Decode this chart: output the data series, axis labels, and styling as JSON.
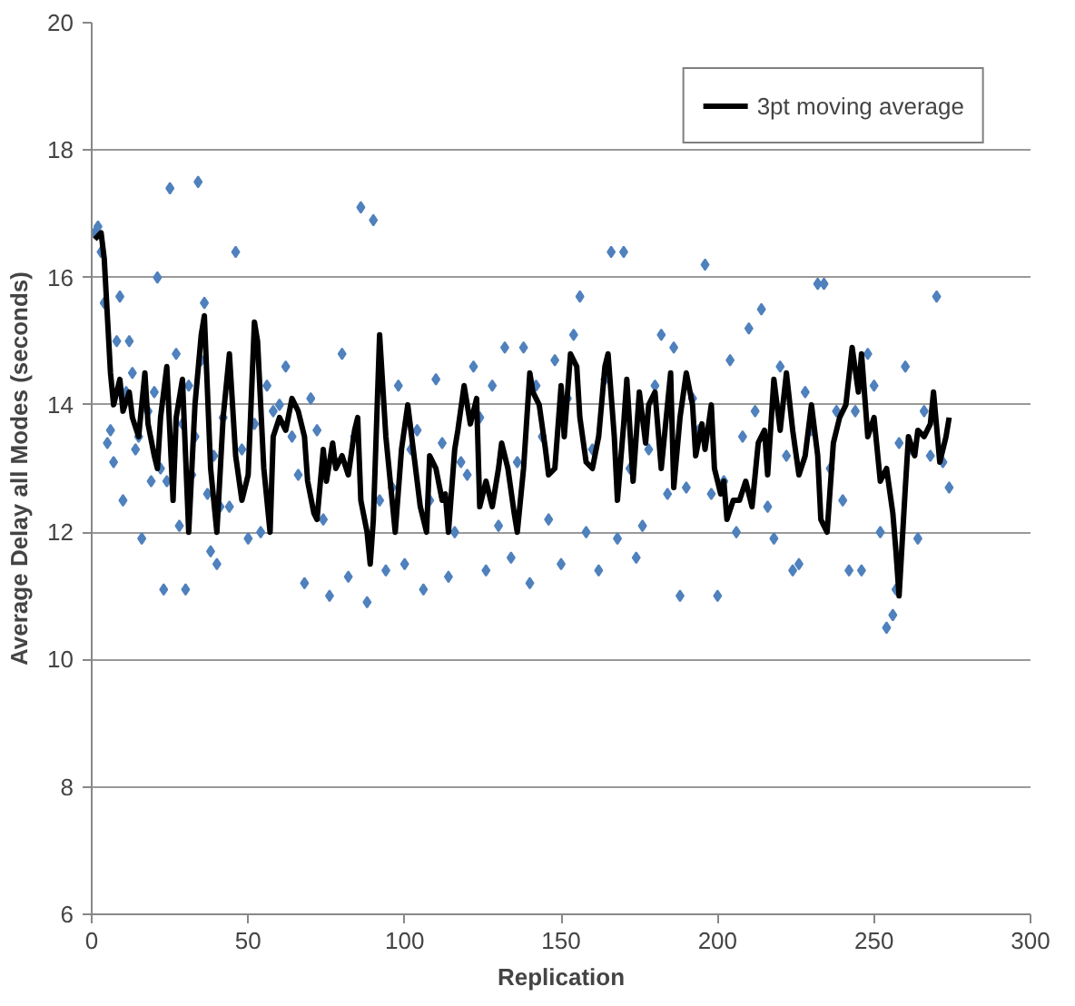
{
  "chart_data": {
    "type": "scatter",
    "xlabel": "Replication",
    "ylabel": "Average Delay all Modes (seconds)",
    "xlim": [
      0,
      300
    ],
    "ylim": [
      6,
      20
    ],
    "xticks": [
      0,
      50,
      100,
      150,
      200,
      250,
      300
    ],
    "yticks": [
      6,
      8,
      10,
      12,
      14,
      16,
      18,
      20
    ],
    "grid": "y",
    "legend": "top right",
    "series": [
      {
        "marker": "diamond",
        "color": "#4f81bd",
        "x": [
          1,
          2,
          3,
          4,
          5,
          6,
          7,
          8,
          9,
          10,
          11,
          12,
          13,
          14,
          15,
          16,
          17,
          18,
          19,
          20,
          21,
          22,
          23,
          24,
          25,
          26,
          27,
          28,
          29,
          30,
          31,
          32,
          33,
          34,
          35,
          36,
          37,
          38,
          39,
          40,
          41,
          42,
          44,
          46,
          48,
          50,
          52,
          54,
          56,
          58,
          60,
          62,
          64,
          66,
          68,
          70,
          72,
          74,
          76,
          78,
          80,
          82,
          84,
          86,
          88,
          90,
          92,
          94,
          96,
          98,
          100,
          102,
          104,
          106,
          108,
          110,
          112,
          114,
          116,
          118,
          120,
          122,
          124,
          126,
          128,
          130,
          132,
          134,
          136,
          138,
          140,
          142,
          144,
          146,
          148,
          150,
          152,
          154,
          156,
          158,
          160,
          162,
          164,
          166,
          168,
          170,
          172,
          174,
          176,
          178,
          180,
          182,
          184,
          186,
          188,
          190,
          192,
          194,
          196,
          198,
          200,
          202,
          204,
          206,
          208,
          210,
          212,
          214,
          216,
          218,
          220,
          222,
          224,
          226,
          228,
          230,
          232,
          234,
          236,
          238,
          240,
          242,
          244,
          246,
          248,
          250,
          252,
          254,
          256,
          257,
          258,
          260,
          262,
          264,
          266,
          268,
          270,
          272,
          274
        ],
        "values": [
          16.7,
          16.8,
          16.4,
          15.6,
          13.4,
          13.6,
          13.1,
          15.0,
          15.7,
          12.5,
          14.2,
          15.0,
          14.5,
          13.3,
          13.5,
          11.9,
          14.0,
          13.9,
          12.8,
          14.2,
          16.0,
          13.0,
          11.1,
          12.8,
          17.4,
          13.2,
          14.8,
          12.1,
          13.7,
          11.1,
          14.3,
          12.9,
          13.5,
          17.5,
          14.7,
          15.6,
          12.6,
          11.7,
          13.2,
          11.5,
          12.4,
          13.8,
          12.4,
          16.4,
          13.3,
          11.9,
          13.7,
          12.0,
          14.3,
          13.9,
          14.0,
          14.6,
          13.5,
          12.9,
          11.2,
          14.1,
          13.6,
          12.2,
          11.0,
          13.1,
          14.8,
          11.3,
          13.5,
          17.1,
          10.9,
          16.9,
          12.5,
          11.4,
          12.7,
          14.3,
          11.5,
          13.3,
          13.6,
          11.1,
          12.5,
          14.4,
          13.4,
          11.3,
          12.0,
          13.1,
          12.9,
          14.6,
          13.8,
          11.4,
          14.3,
          12.1,
          14.9,
          11.6,
          13.1,
          14.9,
          11.2,
          14.3,
          13.5,
          12.2,
          14.7,
          11.5,
          14.1,
          15.1,
          15.7,
          12.0,
          13.3,
          11.4,
          14.4,
          16.4,
          11.9,
          16.4,
          13.0,
          11.6,
          12.1,
          13.3,
          14.3,
          15.1,
          12.6,
          14.9,
          11.0,
          12.7,
          14.1,
          13.6,
          16.2,
          12.6,
          11.0,
          12.8,
          14.7,
          12.0,
          13.5,
          15.2,
          13.9,
          15.5,
          12.4,
          11.9,
          14.6,
          13.2,
          11.4,
          11.5,
          14.2,
          13.6,
          15.9,
          15.9,
          13.0,
          13.9,
          12.5,
          11.4,
          13.9,
          11.4,
          14.8,
          14.3,
          12.0,
          10.5,
          10.7,
          11.1,
          13.4,
          14.6,
          13.3,
          11.9,
          13.9,
          13.2,
          15.7,
          13.1,
          12.7
        ]
      },
      {
        "type": "line",
        "name": "3pt moving average",
        "color": "#000000",
        "marker": "none",
        "line_style": "solid",
        "x": [
          1,
          3,
          4,
          6,
          7,
          9,
          10,
          12,
          13,
          15,
          17,
          18,
          20,
          21,
          22,
          24,
          26,
          27,
          29,
          31,
          33,
          35,
          36,
          38,
          40,
          42,
          44,
          46,
          48,
          50,
          52,
          53,
          55,
          57,
          58,
          60,
          62,
          64,
          66,
          68,
          69,
          71,
          72,
          74,
          75,
          77,
          78,
          80,
          82,
          84,
          85,
          86,
          88,
          89,
          90,
          92,
          94,
          96,
          97,
          99,
          101,
          103,
          105,
          107,
          108,
          110,
          112,
          113,
          114,
          116,
          117,
          119,
          121,
          123,
          124,
          126,
          128,
          130,
          131,
          133,
          135,
          136,
          138,
          140,
          141,
          143,
          145,
          146,
          148,
          150,
          151,
          153,
          155,
          156,
          158,
          160,
          162,
          164,
          165,
          167,
          168,
          170,
          171,
          173,
          175,
          177,
          178,
          180,
          182,
          183,
          185,
          186,
          188,
          190,
          192,
          193,
          195,
          196,
          198,
          199,
          201,
          202,
          203,
          205,
          207,
          209,
          211,
          213,
          215,
          216,
          218,
          220,
          222,
          224,
          226,
          228,
          230,
          232,
          233,
          235,
          237,
          239,
          241,
          243,
          245,
          246,
          248,
          250,
          252,
          254,
          256,
          257,
          258,
          260,
          261,
          263,
          264,
          266,
          268,
          269,
          271,
          273,
          274
        ],
        "values": [
          16.6,
          16.7,
          16.3,
          14.5,
          14.0,
          14.4,
          13.9,
          14.2,
          13.8,
          13.5,
          14.5,
          13.7,
          13.2,
          13.0,
          13.8,
          14.6,
          12.5,
          13.8,
          14.4,
          12.0,
          14.0,
          15.1,
          15.4,
          13.0,
          12.0,
          13.8,
          14.8,
          13.2,
          12.5,
          12.9,
          15.3,
          15.0,
          13.0,
          12.0,
          13.5,
          13.8,
          13.6,
          14.1,
          13.9,
          13.5,
          12.8,
          12.3,
          12.2,
          13.3,
          12.8,
          13.4,
          13.0,
          13.2,
          12.9,
          13.6,
          13.8,
          12.5,
          12.0,
          11.5,
          12.2,
          15.1,
          13.5,
          12.5,
          12.0,
          13.3,
          14.0,
          13.2,
          12.4,
          12.0,
          13.2,
          13.0,
          12.5,
          12.6,
          12.0,
          13.3,
          13.6,
          14.3,
          13.7,
          14.1,
          12.4,
          12.8,
          12.4,
          13.0,
          13.4,
          13.0,
          12.3,
          12.0,
          13.0,
          14.5,
          14.2,
          14.0,
          13.3,
          12.9,
          13.0,
          14.3,
          13.5,
          14.8,
          14.6,
          13.8,
          13.1,
          13.0,
          13.5,
          14.6,
          14.8,
          13.5,
          12.5,
          13.7,
          14.4,
          12.8,
          14.2,
          13.4,
          14.0,
          14.2,
          13.0,
          13.5,
          14.5,
          12.7,
          13.8,
          14.5,
          14.0,
          13.2,
          13.7,
          13.3,
          14.0,
          13.0,
          12.6,
          12.8,
          12.2,
          12.5,
          12.5,
          12.8,
          12.4,
          13.4,
          13.6,
          12.9,
          14.4,
          13.6,
          14.5,
          13.6,
          12.9,
          13.2,
          14.0,
          13.2,
          12.2,
          12.0,
          13.4,
          13.8,
          14.0,
          14.9,
          14.2,
          14.8,
          13.5,
          13.8,
          12.8,
          13.0,
          12.3,
          11.7,
          11.0,
          12.7,
          13.5,
          13.2,
          13.6,
          13.5,
          13.7,
          14.2,
          13.1,
          13.5,
          13.8
        ]
      }
    ]
  }
}
